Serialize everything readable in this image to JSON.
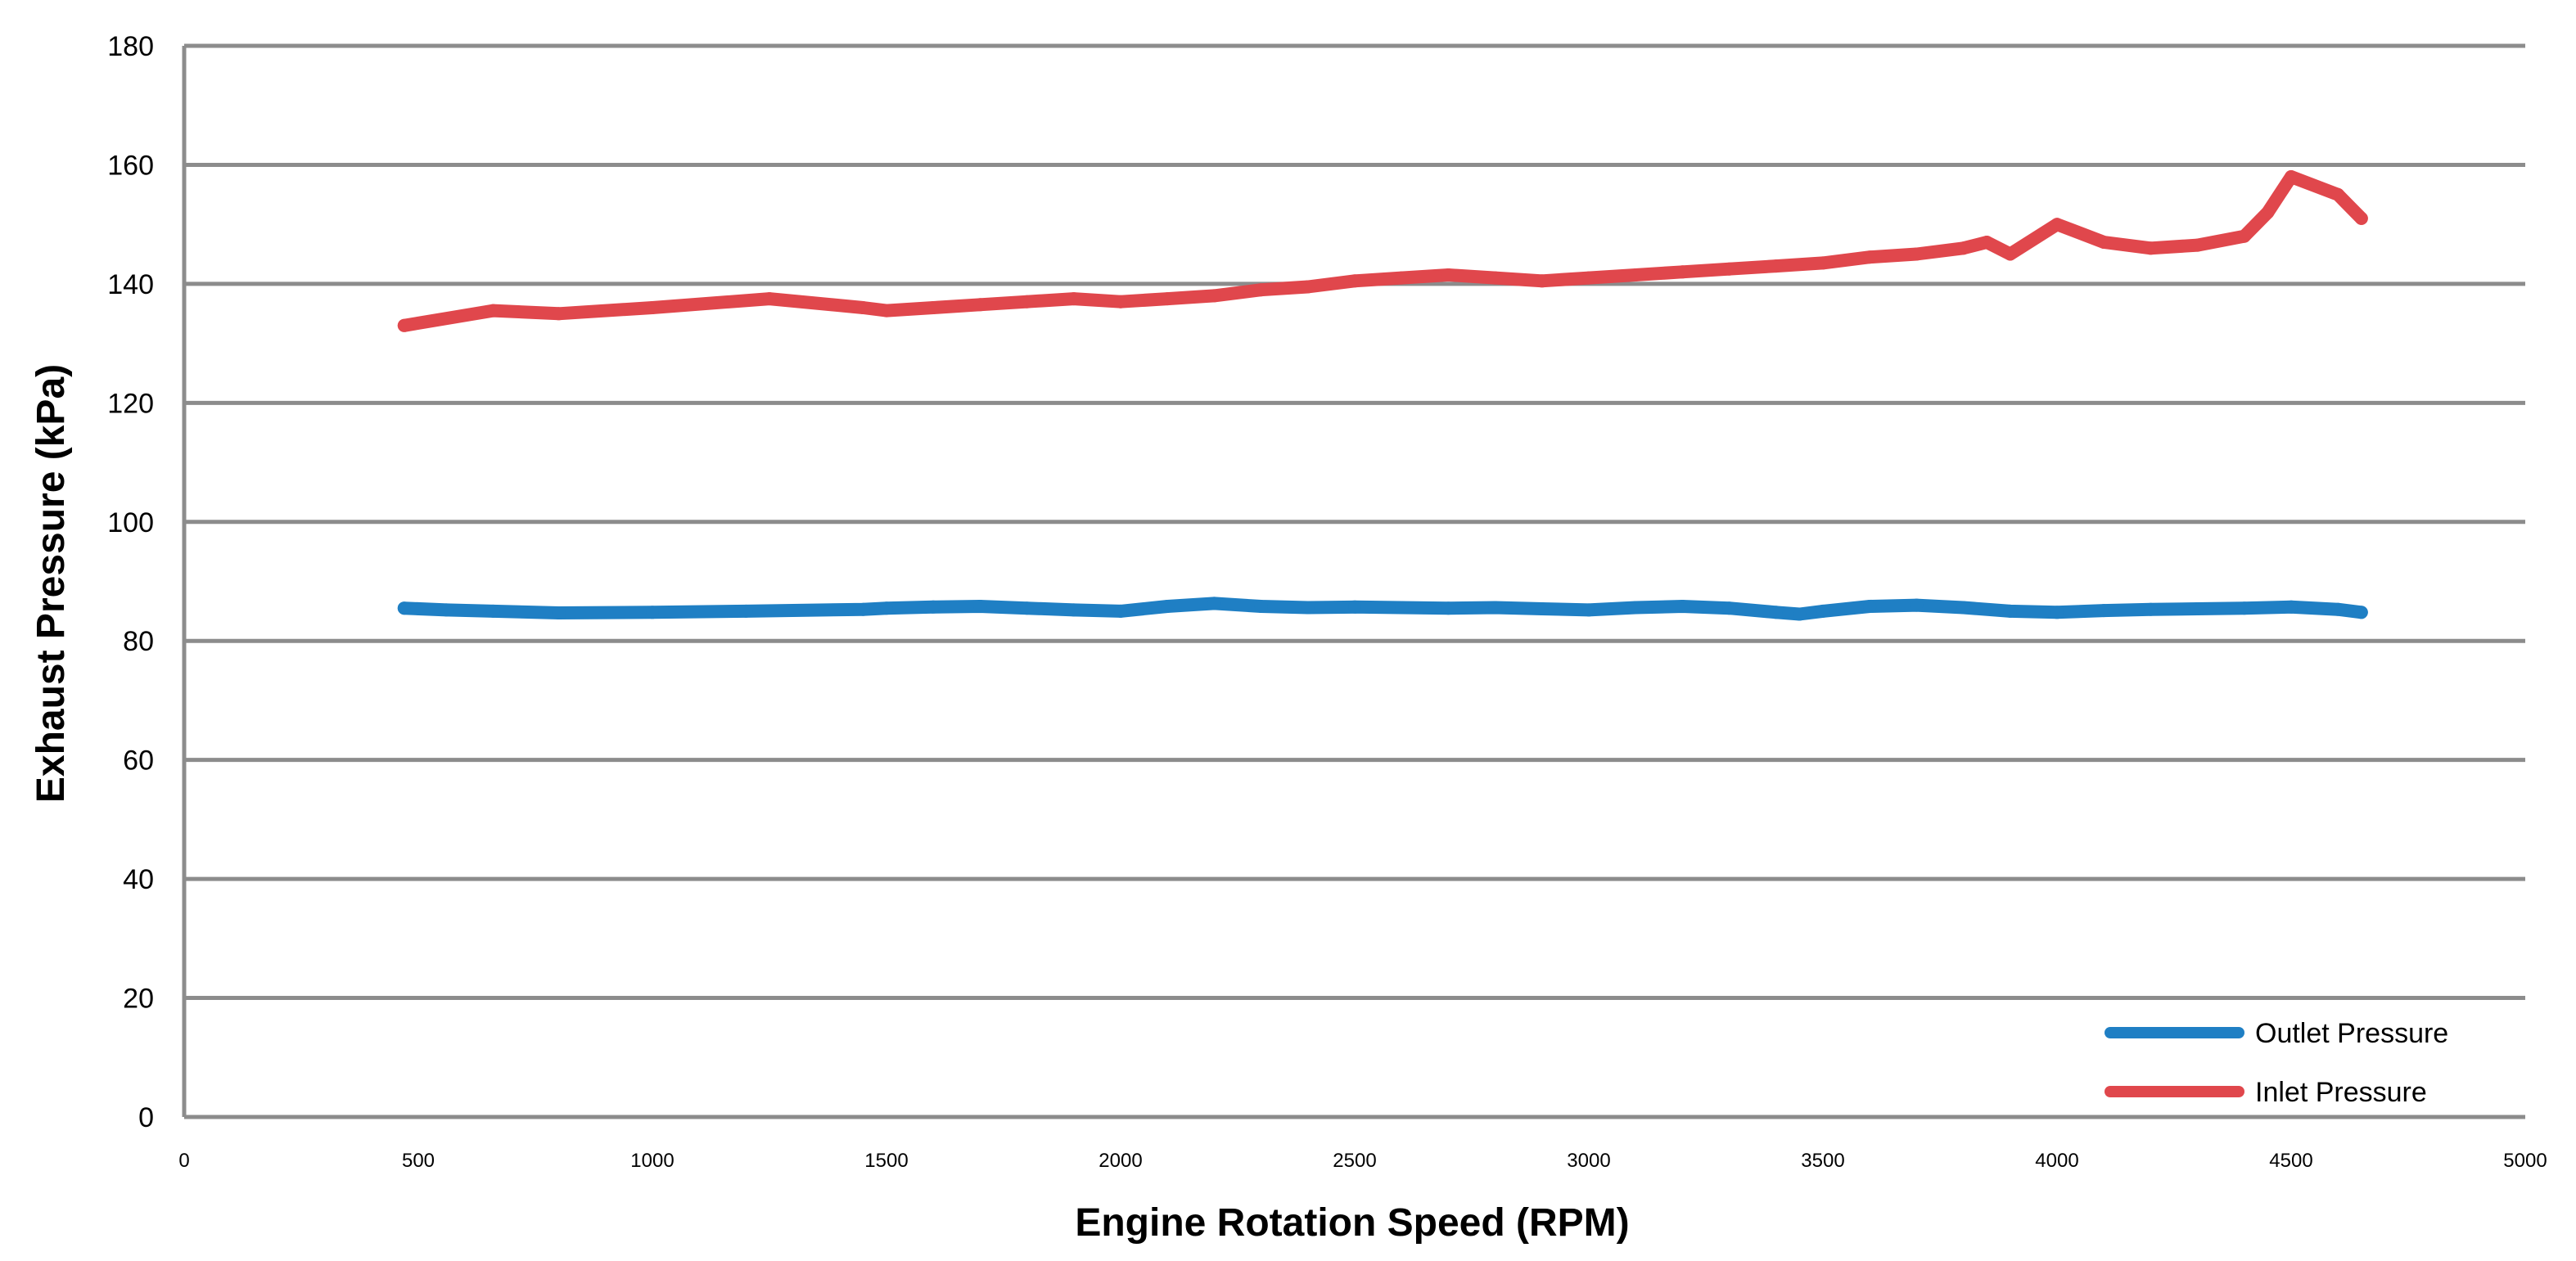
{
  "chart_data": {
    "type": "line",
    "title": "",
    "xlabel": "Engine Rotation Speed (RPM)",
    "ylabel": "Exhaust Pressure (kPa)",
    "xlim": [
      0,
      5000
    ],
    "ylim": [
      0,
      180
    ],
    "xticks": [
      0,
      500,
      1000,
      1500,
      2000,
      2500,
      3000,
      3500,
      4000,
      4500,
      5000
    ],
    "yticks": [
      0,
      20,
      40,
      60,
      80,
      100,
      120,
      140,
      160,
      180
    ],
    "grid": "horizontal",
    "legend_position": "bottom-right",
    "series": [
      {
        "name": "Outlet Pressure",
        "color": "#1f7fc4",
        "x": [
          470,
          560,
          660,
          800,
          1000,
          1200,
          1450,
          1500,
          1600,
          1700,
          1800,
          1900,
          2000,
          2100,
          2200,
          2300,
          2400,
          2500,
          2600,
          2700,
          2800,
          2900,
          3000,
          3100,
          3200,
          3300,
          3400,
          3450,
          3500,
          3600,
          3700,
          3800,
          3900,
          4000,
          4100,
          4200,
          4300,
          4400,
          4500,
          4600,
          4650
        ],
        "y": [
          85.5,
          85.2,
          85.0,
          84.7,
          84.8,
          85.0,
          85.3,
          85.5,
          85.7,
          85.8,
          85.5,
          85.2,
          85.0,
          85.8,
          86.3,
          85.8,
          85.6,
          85.7,
          85.6,
          85.5,
          85.6,
          85.4,
          85.2,
          85.6,
          85.8,
          85.5,
          84.8,
          84.5,
          85.0,
          85.8,
          86.0,
          85.6,
          85.0,
          84.8,
          85.1,
          85.3,
          85.4,
          85.5,
          85.7,
          85.3,
          84.8
        ]
      },
      {
        "name": "Inlet Pressure",
        "color": "#e0474c",
        "x": [
          470,
          660,
          800,
          1000,
          1250,
          1450,
          1500,
          1600,
          1700,
          1800,
          1900,
          2000,
          2100,
          2200,
          2300,
          2400,
          2500,
          2600,
          2700,
          2800,
          2900,
          3000,
          3100,
          3200,
          3300,
          3400,
          3500,
          3600,
          3700,
          3800,
          3850,
          3900,
          4000,
          4100,
          4200,
          4300,
          4400,
          4450,
          4500,
          4600,
          4650
        ],
        "y": [
          133.0,
          135.5,
          135.0,
          136.0,
          137.5,
          136.0,
          135.5,
          136.0,
          136.5,
          137.0,
          137.5,
          137.0,
          137.5,
          138.0,
          139.0,
          139.5,
          140.5,
          141.0,
          141.5,
          141.0,
          140.5,
          141.0,
          141.5,
          142.0,
          142.5,
          143.0,
          143.5,
          144.5,
          145.0,
          146.0,
          147.0,
          145.0,
          150.0,
          147.0,
          146.0,
          146.5,
          148.0,
          152.0,
          158.0,
          155.0,
          151.0
        ]
      }
    ]
  }
}
